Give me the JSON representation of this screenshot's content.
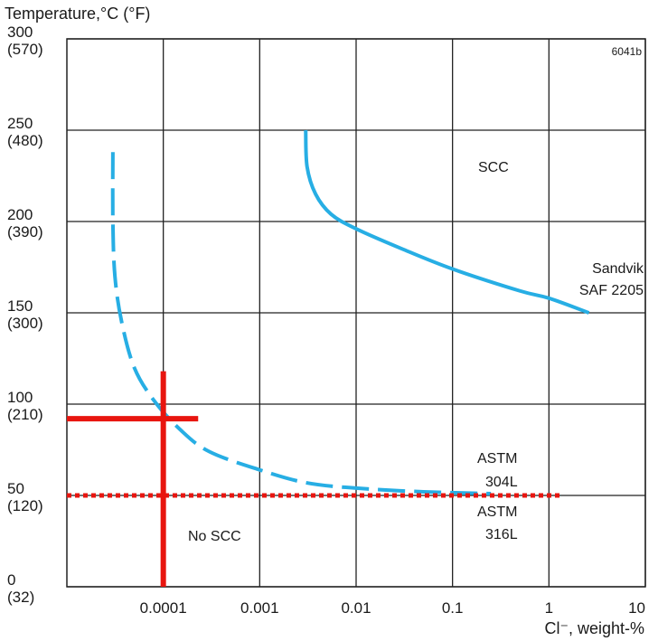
{
  "chart_data": {
    "type": "line",
    "figure_id": "6041b",
    "ylabel": "Temperature,°C (°F)",
    "xlabel": "Cl⁻, weight-%",
    "x_scale": "log",
    "xlim": [
      1e-05,
      10
    ],
    "ylim": [
      0,
      300
    ],
    "x_ticks": [
      {
        "value": 0.0001,
        "label": "0.0001"
      },
      {
        "value": 0.001,
        "label": "0.001"
      },
      {
        "value": 0.01,
        "label": "0.01"
      },
      {
        "value": 0.1,
        "label": "0.1"
      },
      {
        "value": 1,
        "label": "1"
      },
      {
        "value": 10,
        "label": "10"
      }
    ],
    "y_ticks": [
      {
        "value": 0,
        "c": "0",
        "f": "(32)"
      },
      {
        "value": 50,
        "c": "50",
        "f": "(120)"
      },
      {
        "value": 100,
        "c": "100",
        "f": "(210)"
      },
      {
        "value": 150,
        "c": "150",
        "f": "(300)"
      },
      {
        "value": 200,
        "c": "200",
        "f": "(390)"
      },
      {
        "value": 250,
        "c": "250",
        "f": "(480)"
      },
      {
        "value": 300,
        "c": "300",
        "f": "(570)"
      }
    ],
    "grid": true,
    "series": [
      {
        "name": "ASTM 304L",
        "style": "dashed",
        "color": "#27aee4",
        "points": [
          [
            3e-05,
            238
          ],
          [
            3e-05,
            200
          ],
          [
            3.15e-05,
            170
          ],
          [
            3.7e-05,
            145
          ],
          [
            5e-05,
            120
          ],
          [
            8e-05,
            102
          ],
          [
            0.00015,
            86
          ],
          [
            0.0003,
            74
          ],
          [
            0.001,
            64
          ],
          [
            0.003,
            57
          ],
          [
            0.01,
            54
          ],
          [
            0.05,
            52
          ],
          [
            0.25,
            51
          ]
        ]
      },
      {
        "name": "ASTM 316L",
        "style": "dotted",
        "color": "#e8150f",
        "points": [
          [
            1e-05,
            50
          ],
          [
            1.3,
            50
          ]
        ]
      },
      {
        "name": "Sandvik SAF 2205",
        "style": "solid",
        "color": "#27aee4",
        "points": [
          [
            0.003,
            250
          ],
          [
            0.0031,
            230
          ],
          [
            0.0038,
            215
          ],
          [
            0.0055,
            204
          ],
          [
            0.01,
            196
          ],
          [
            0.03,
            185
          ],
          [
            0.1,
            174
          ],
          [
            0.5,
            162
          ],
          [
            1.0,
            158
          ],
          [
            2.6,
            150
          ]
        ]
      }
    ],
    "markers": [
      {
        "type": "cross",
        "x": 0.0001,
        "y": 92,
        "color": "#e8150f"
      }
    ],
    "annotations": {
      "scc": "SCC",
      "no_scc": "No SCC",
      "saf_line1": "Sandvik",
      "saf_line2": "SAF 2205",
      "astm304_line1": "ASTM",
      "astm304_line2": "304L",
      "astm316_line1": "ASTM",
      "astm316_line2": "316L"
    }
  }
}
